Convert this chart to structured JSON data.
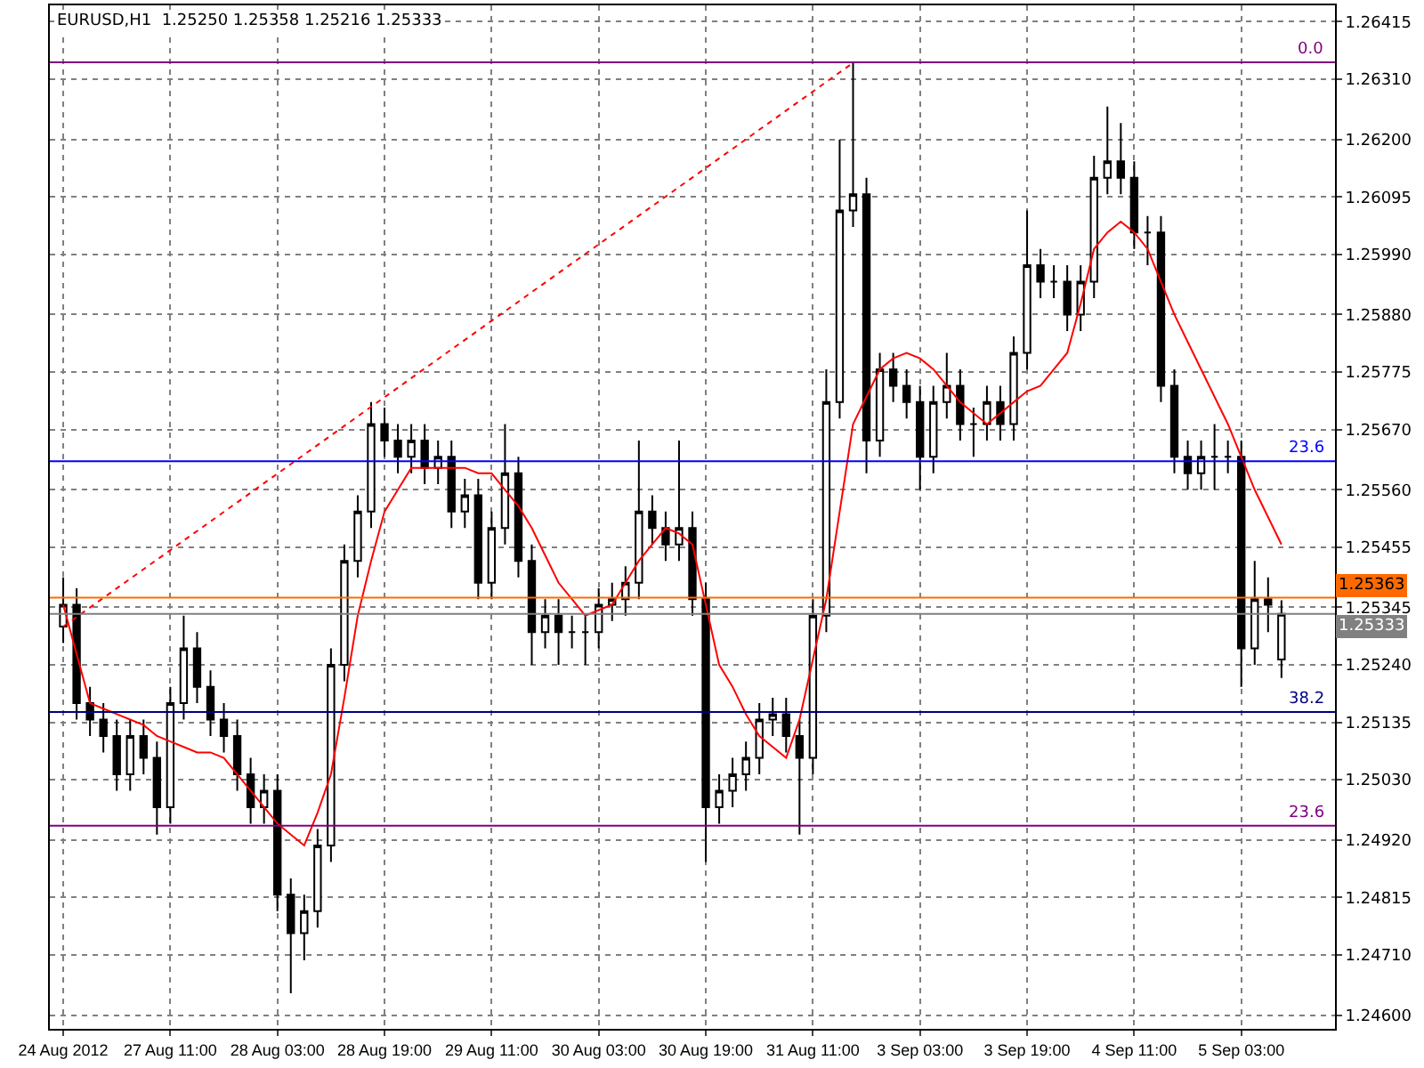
{
  "chart_data": {
    "type": "candlestick",
    "title": "EURUSD,H1  1.25250 1.25358 1.25216 1.25333",
    "categories": [
      "24 Aug 2012",
      null,
      null,
      null,
      null,
      null,
      null,
      null,
      "27 Aug 11:00",
      null,
      null,
      null,
      null,
      null,
      null,
      null,
      "28 Aug 03:00",
      null,
      null,
      null,
      null,
      null,
      null,
      null,
      "28 Aug 19:00",
      null,
      null,
      null,
      null,
      null,
      null,
      null,
      "29 Aug 11:00",
      null,
      null,
      null,
      null,
      null,
      null,
      null,
      "30 Aug 03:00",
      null,
      null,
      null,
      null,
      null,
      null,
      null,
      "30 Aug 19:00",
      null,
      null,
      null,
      null,
      null,
      null,
      null,
      "31 Aug 11:00",
      null,
      null,
      null,
      null,
      null,
      null,
      null,
      "3 Sep 03:00",
      null,
      null,
      null,
      null,
      null,
      null,
      null,
      "3 Sep 19:00",
      null,
      null,
      null,
      null,
      null,
      null,
      null,
      "4 Sep 11:00",
      null,
      null,
      null,
      null,
      null,
      null,
      null,
      "5 Sep 03:00",
      null,
      null,
      null
    ],
    "ohlc": [
      [
        1.2531,
        1.254,
        1.2528,
        1.2535
      ],
      [
        1.2535,
        1.2538,
        1.2514,
        1.2517
      ],
      [
        1.2517,
        1.252,
        1.2511,
        1.2514
      ],
      [
        1.2514,
        1.2517,
        1.2508,
        1.2511
      ],
      [
        1.2511,
        1.2514,
        1.2501,
        1.2504
      ],
      [
        1.2504,
        1.2514,
        1.2501,
        1.2511
      ],
      [
        1.2511,
        1.2514,
        1.2504,
        1.2507
      ],
      [
        1.2507,
        1.251,
        1.2493,
        1.2498
      ],
      [
        1.2498,
        1.252,
        1.2495,
        1.2517
      ],
      [
        1.2517,
        1.2533,
        1.2514,
        1.2527
      ],
      [
        1.2527,
        1.253,
        1.2517,
        1.252
      ],
      [
        1.252,
        1.2523,
        1.2511,
        1.2514
      ],
      [
        1.2514,
        1.2517,
        1.2508,
        1.2511
      ],
      [
        1.2511,
        1.2514,
        1.2501,
        1.2504
      ],
      [
        1.2504,
        1.2507,
        1.2495,
        1.2498
      ],
      [
        1.2498,
        1.2504,
        1.2495,
        1.2501
      ],
      [
        1.2501,
        1.2504,
        1.2479,
        1.2482
      ],
      [
        1.2482,
        1.2485,
        1.2464,
        1.2475
      ],
      [
        1.2475,
        1.2482,
        1.247,
        1.2479
      ],
      [
        1.2479,
        1.2494,
        1.2476,
        1.2491
      ],
      [
        1.2491,
        1.2527,
        1.2488,
        1.2524
      ],
      [
        1.2524,
        1.2546,
        1.2521,
        1.2543
      ],
      [
        1.2543,
        1.2555,
        1.254,
        1.2552
      ],
      [
        1.2552,
        1.2572,
        1.2549,
        1.2568
      ],
      [
        1.2568,
        1.2571,
        1.2562,
        1.2565
      ],
      [
        1.2565,
        1.2568,
        1.2559,
        1.2562
      ],
      [
        1.2562,
        1.2568,
        1.2559,
        1.2565
      ],
      [
        1.2565,
        1.2568,
        1.2557,
        1.256
      ],
      [
        1.256,
        1.2565,
        1.2557,
        1.2562
      ],
      [
        1.2562,
        1.2565,
        1.2549,
        1.2552
      ],
      [
        1.2552,
        1.2558,
        1.2549,
        1.2555
      ],
      [
        1.2555,
        1.2558,
        1.2536,
        1.2539
      ],
      [
        1.2539,
        1.2552,
        1.2536,
        1.2549
      ],
      [
        1.2549,
        1.2568,
        1.2546,
        1.2559
      ],
      [
        1.2559,
        1.2562,
        1.254,
        1.2543
      ],
      [
        1.2543,
        1.2546,
        1.2524,
        1.253
      ],
      [
        1.253,
        1.2536,
        1.2527,
        1.2533
      ],
      [
        1.2533,
        1.2536,
        1.2524,
        1.253
      ],
      [
        1.253,
        1.2533,
        1.2527,
        1.253
      ],
      [
        1.253,
        1.2533,
        1.2524,
        1.253
      ],
      [
        1.253,
        1.2538,
        1.2527,
        1.2535
      ],
      [
        1.2535,
        1.2539,
        1.2532,
        1.2536
      ],
      [
        1.2536,
        1.2542,
        1.2533,
        1.2539
      ],
      [
        1.2539,
        1.2565,
        1.2536,
        1.2552
      ],
      [
        1.2552,
        1.2555,
        1.2546,
        1.2549
      ],
      [
        1.2549,
        1.2552,
        1.2543,
        1.2546
      ],
      [
        1.2546,
        1.2565,
        1.2543,
        1.2549
      ],
      [
        1.2549,
        1.2552,
        1.2533,
        1.2536
      ],
      [
        1.2536,
        1.2539,
        1.2488,
        1.2498
      ],
      [
        1.2498,
        1.2504,
        1.2495,
        1.2501
      ],
      [
        1.2501,
        1.2507,
        1.2498,
        1.2504
      ],
      [
        1.2504,
        1.251,
        1.2501,
        1.2507
      ],
      [
        1.2507,
        1.2517,
        1.2504,
        1.2514
      ],
      [
        1.2514,
        1.2518,
        1.2511,
        1.2515
      ],
      [
        1.2515,
        1.2518,
        1.2508,
        1.2511
      ],
      [
        1.2511,
        1.2514,
        1.2493,
        1.2507
      ],
      [
        1.2507,
        1.2536,
        1.2504,
        1.2533
      ],
      [
        1.2533,
        1.2578,
        1.253,
        1.2572
      ],
      [
        1.2572,
        1.262,
        1.2569,
        1.2607
      ],
      [
        1.2607,
        1.2634,
        1.2604,
        1.261
      ],
      [
        1.261,
        1.2613,
        1.2559,
        1.2565
      ],
      [
        1.2565,
        1.2581,
        1.2562,
        1.2578
      ],
      [
        1.2578,
        1.2581,
        1.2572,
        1.2575
      ],
      [
        1.2575,
        1.2578,
        1.2569,
        1.2572
      ],
      [
        1.2572,
        1.2575,
        1.2556,
        1.2562
      ],
      [
        1.2562,
        1.2575,
        1.2559,
        1.2572
      ],
      [
        1.2572,
        1.2581,
        1.2569,
        1.2575
      ],
      [
        1.2575,
        1.2578,
        1.2565,
        1.2568
      ],
      [
        1.2568,
        1.2571,
        1.2562,
        1.2568
      ],
      [
        1.2568,
        1.2575,
        1.2565,
        1.2572
      ],
      [
        1.2572,
        1.2575,
        1.2565,
        1.2568
      ],
      [
        1.2568,
        1.2584,
        1.2565,
        1.2581
      ],
      [
        1.2581,
        1.2607,
        1.2578,
        1.2597
      ],
      [
        1.2597,
        1.26,
        1.2591,
        1.2594
      ],
      [
        1.2594,
        1.2597,
        1.2591,
        1.2594
      ],
      [
        1.2594,
        1.2597,
        1.2585,
        1.2588
      ],
      [
        1.2588,
        1.2597,
        1.2585,
        1.2594
      ],
      [
        1.2594,
        1.2617,
        1.2591,
        1.2613
      ],
      [
        1.2613,
        1.2626,
        1.261,
        1.2616
      ],
      [
        1.2616,
        1.2623,
        1.261,
        1.2613
      ],
      [
        1.2613,
        1.2616,
        1.26,
        1.2603
      ],
      [
        1.2603,
        1.2606,
        1.2597,
        1.2603
      ],
      [
        1.2603,
        1.2606,
        1.2572,
        1.2575
      ],
      [
        1.2575,
        1.2578,
        1.2559,
        1.2562
      ],
      [
        1.2562,
        1.2565,
        1.2556,
        1.2559
      ],
      [
        1.2559,
        1.2565,
        1.2556,
        1.2562
      ],
      [
        1.2562,
        1.2568,
        1.2556,
        1.2562
      ],
      [
        1.2562,
        1.2565,
        1.2559,
        1.2562
      ],
      [
        1.2562,
        1.2565,
        1.252,
        1.2527
      ],
      [
        1.2527,
        1.2543,
        1.2524,
        1.2536
      ],
      [
        1.2536,
        1.254,
        1.253,
        1.2535
      ],
      [
        1.2525,
        1.25358,
        1.25216,
        1.25333
      ]
    ],
    "series": [
      {
        "type": "line",
        "color": "#ff0000",
        "line_style": "solid",
        "values": [
          1.2535,
          1.2526,
          1.2517,
          1.2516,
          1.2515,
          1.2514,
          1.2513,
          1.2511,
          1.251,
          1.2509,
          1.2508,
          1.2508,
          1.2507,
          1.2504,
          1.2501,
          1.2498,
          1.2495,
          1.2493,
          1.2491,
          1.2497,
          1.2504,
          1.2518,
          1.2533,
          1.2543,
          1.2552,
          1.2556,
          1.256,
          1.256,
          1.256,
          1.256,
          1.256,
          1.2559,
          1.2559,
          1.2556,
          1.2553,
          1.2549,
          1.2544,
          1.2539,
          1.2536,
          1.2533,
          1.2534,
          1.2535,
          1.2539,
          1.2543,
          1.2546,
          1.2549,
          1.2548,
          1.2546,
          1.2535,
          1.2524,
          1.252,
          1.2515,
          1.2511,
          1.2509,
          1.2507,
          1.2514,
          1.2525,
          1.2536,
          1.2552,
          1.2568,
          1.2573,
          1.2578,
          1.258,
          1.2581,
          1.258,
          1.2578,
          1.2575,
          1.2572,
          1.257,
          1.2568,
          1.257,
          1.2572,
          1.2574,
          1.2575,
          1.2578,
          1.2581,
          1.259,
          1.26,
          1.2603,
          1.2605,
          1.2603,
          1.26,
          1.2594,
          1.2588,
          1.2583,
          1.2578,
          1.2573,
          1.2568,
          1.2562,
          1.2556,
          1.2551,
          1.2546
        ]
      },
      {
        "type": "line",
        "color": "#ff0000",
        "line_style": "dotted",
        "values": [
          1.2531,
          null,
          null,
          null,
          null,
          null,
          null,
          null,
          null,
          null,
          null,
          null,
          null,
          null,
          null,
          null,
          null,
          null,
          null,
          null,
          null,
          null,
          null,
          null,
          null,
          null,
          null,
          null,
          null,
          null,
          null,
          null,
          null,
          null,
          null,
          null,
          null,
          null,
          null,
          null,
          null,
          null,
          null,
          null,
          null,
          null,
          null,
          null,
          null,
          null,
          null,
          null,
          null,
          null,
          null,
          null,
          null,
          null,
          null,
          1.2634,
          null,
          null,
          null,
          null,
          null,
          null,
          null,
          null,
          null,
          null,
          null,
          null,
          null,
          null,
          null,
          null,
          null,
          null,
          null,
          null,
          null,
          null,
          null,
          null,
          null,
          null,
          null,
          null,
          null,
          null,
          null,
          null
        ]
      }
    ],
    "ref_lines": [
      {
        "axis": "y",
        "value": 1.26341,
        "color": "#800080"
      },
      {
        "axis": "y",
        "value": 1.25612,
        "color": "#0000ff"
      },
      {
        "axis": "y",
        "value": 1.25154,
        "color": "#000080"
      },
      {
        "axis": "y",
        "value": 1.24946,
        "color": "#800080"
      },
      {
        "axis": "y",
        "value": 1.25363,
        "label": "1.25363",
        "color": "#ff6a00"
      },
      {
        "axis": "y",
        "value": 1.25333,
        "label": "1.25333",
        "color": "#808080"
      }
    ],
    "annotations": [
      {
        "text": "0.0",
        "y": 1.26341
      },
      {
        "text": "23.6",
        "y": 1.25612
      },
      {
        "text": "38.2",
        "y": 1.25154
      },
      {
        "text": "23.6",
        "y": 1.24946
      }
    ],
    "ylim": [
      1.24575,
      1.26445
    ],
    "yticks": [
      {
        "value": 1.246,
        "label": "1.24600"
      },
      {
        "value": 1.2471,
        "label": "1.24710"
      },
      {
        "value": 1.24815,
        "label": "1.24815"
      },
      {
        "value": 1.2492,
        "label": "1.24920"
      },
      {
        "value": 1.2503,
        "label": "1.25030"
      },
      {
        "value": 1.25135,
        "label": "1.25135"
      },
      {
        "value": 1.2524,
        "label": "1.25240"
      },
      {
        "value": 1.25345,
        "label": "1.25345"
      },
      {
        "value": 1.25455,
        "label": "1.25455"
      },
      {
        "value": 1.2556,
        "label": "1.25560"
      },
      {
        "value": 1.2567,
        "label": "1.25670"
      },
      {
        "value": 1.25775,
        "label": "1.25775"
      },
      {
        "value": 1.2588,
        "label": "1.25880"
      },
      {
        "value": 1.2599,
        "label": "1.25990"
      },
      {
        "value": 1.26095,
        "label": "1.26095"
      },
      {
        "value": 1.262,
        "label": "1.26200"
      },
      {
        "value": 1.2631,
        "label": "1.26310"
      },
      {
        "value": 1.26415,
        "label": "1.26415"
      }
    ],
    "grid": true
  }
}
